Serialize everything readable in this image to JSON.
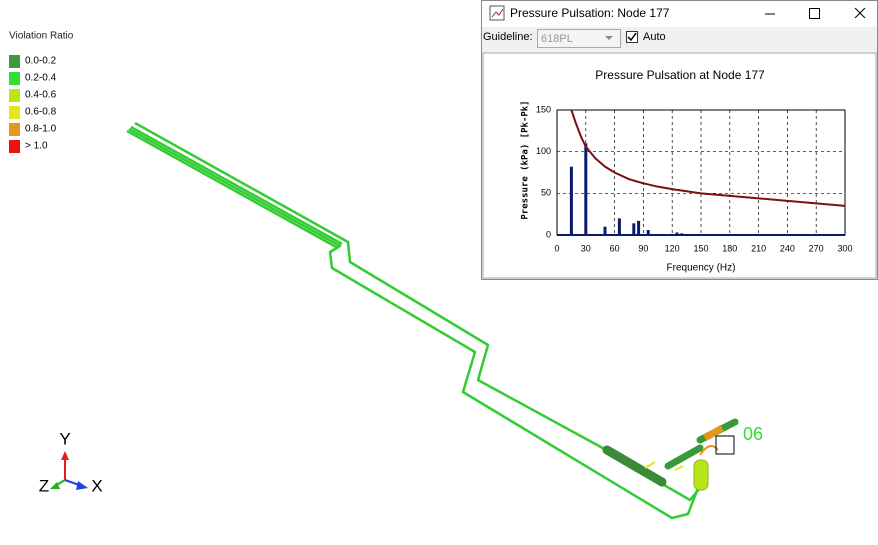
{
  "legend": {
    "title": "Violation Ratio",
    "items": [
      {
        "label": "0.0-0.2",
        "color": "#3a9a3a"
      },
      {
        "label": "0.2-0.4",
        "color": "#33dd33"
      },
      {
        "label": "0.4-0.6",
        "color": "#b8e61a"
      },
      {
        "label": "0.6-0.8",
        "color": "#e6e61a"
      },
      {
        "label": "0.8-1.0",
        "color": "#e6961a"
      },
      {
        "label": "> 1.0",
        "color": "#ee1111"
      }
    ]
  },
  "model": {
    "node_label": "06",
    "axes": {
      "x": "X",
      "y": "Y",
      "z": "Z"
    }
  },
  "window": {
    "title": "Pressure Pulsation: Node 177",
    "guideline_label": "Guideline:",
    "guideline_value": "618PL",
    "auto_label": "Auto"
  },
  "chart_data": {
    "type": "bar+line",
    "title": "Pressure Pulsation at Node 177",
    "y_label": "Pressure (kPa) [Pk-Pk]",
    "x_label": "Frequency (Hz)",
    "xlim": [
      0,
      300
    ],
    "ylim": [
      0,
      150
    ],
    "xticks": [
      0,
      30,
      60,
      90,
      120,
      150,
      180,
      210,
      240,
      270,
      300
    ],
    "yticks": [
      0,
      50,
      100,
      150
    ],
    "grid": true,
    "bars": {
      "color": "#0a1a6e",
      "x": [
        15,
        30,
        50,
        65,
        80,
        85,
        95,
        125,
        130
      ],
      "values": [
        82,
        110,
        10,
        20,
        14,
        17,
        6,
        3,
        2
      ]
    },
    "guideline": {
      "color": "#7a1010",
      "x": [
        15,
        20,
        25,
        30,
        40,
        50,
        60,
        75,
        90,
        105,
        120,
        150,
        180,
        210,
        240,
        270,
        300
      ],
      "values": [
        150,
        133,
        118,
        106,
        92,
        82,
        75,
        67,
        62,
        58,
        55,
        50,
        47,
        44,
        41,
        38,
        35
      ]
    }
  }
}
